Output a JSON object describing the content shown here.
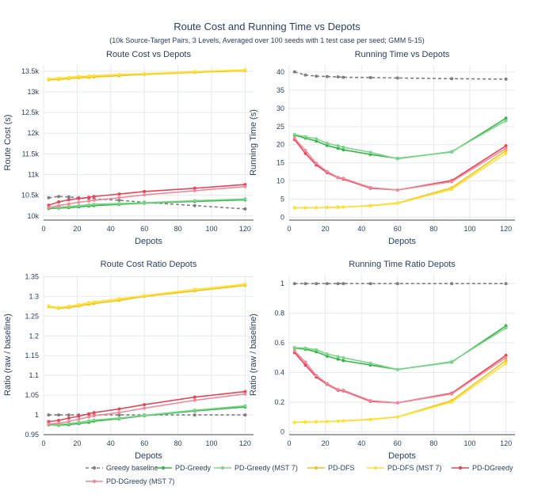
{
  "title": "Route Cost and Running Time vs Depots",
  "subtitle": "(10k Source-Target Pairs, 3 Levels, Averaged over 100 seeds with 1 test case per seed; GMM 5-15)",
  "series_styles": [
    {
      "name": "Greedy baseline",
      "color": "#7f7f7f",
      "dash": true
    },
    {
      "name": "PD-Greedy",
      "color": "#3cb44b",
      "dash": false
    },
    {
      "name": "PD-Greedy (MST 7)",
      "color": "#7ad68a",
      "dash": false
    },
    {
      "name": "PD-DFS",
      "color": "#f0c419",
      "dash": false
    },
    {
      "name": "PD-DFS (MST 7)",
      "color": "#ffe135",
      "dash": false
    },
    {
      "name": "PD-DGreedy",
      "color": "#e6455a",
      "dash": false
    },
    {
      "name": "PD-DGreedy (MST 7)",
      "color": "#f08a9a",
      "dash": false
    }
  ],
  "chart_data": [
    {
      "type": "line",
      "title": "Route Cost vs Depots",
      "xlabel": "Depots",
      "ylabel": "Route Cost (s)",
      "xlim": [
        0,
        125
      ],
      "ylim": [
        9900,
        13650
      ],
      "xticks": [
        0,
        20,
        40,
        60,
        80,
        100,
        120
      ],
      "xticklabels": [
        "0",
        "20",
        "40",
        "60",
        "80",
        "100",
        "120"
      ],
      "yticks": [
        10000,
        10500,
        11000,
        11500,
        12000,
        12500,
        13000,
        13500
      ],
      "yticklabels": [
        "10k",
        "10.5k",
        "11k",
        "11.5k",
        "12k",
        "12.5k",
        "13k",
        "13.5k"
      ],
      "x": [
        3,
        9,
        15,
        21,
        27,
        30,
        45,
        60,
        90,
        120
      ],
      "series": [
        {
          "name": "Greedy baseline",
          "values": [
            10440,
            10470,
            10460,
            10440,
            10420,
            10410,
            10380,
            10330,
            10250,
            10170
          ]
        },
        {
          "name": "PD-Greedy",
          "values": [
            10180,
            10190,
            10200,
            10220,
            10240,
            10250,
            10280,
            10310,
            10350,
            10390
          ]
        },
        {
          "name": "PD-Greedy (MST 7)",
          "values": [
            10200,
            10210,
            10230,
            10250,
            10270,
            10280,
            10300,
            10320,
            10370,
            10410
          ]
        },
        {
          "name": "PD-DFS",
          "values": [
            13290,
            13300,
            13320,
            13340,
            13350,
            13360,
            13390,
            13420,
            13470,
            13510
          ]
        },
        {
          "name": "PD-DFS (MST 7)",
          "values": [
            13310,
            13330,
            13350,
            13370,
            13380,
            13390,
            13420,
            13440,
            13490,
            13530
          ]
        },
        {
          "name": "PD-DGreedy",
          "values": [
            10260,
            10340,
            10390,
            10420,
            10450,
            10470,
            10530,
            10590,
            10670,
            10760
          ]
        },
        {
          "name": "PD-DGreedy (MST 7)",
          "values": [
            10200,
            10250,
            10290,
            10330,
            10360,
            10380,
            10440,
            10510,
            10610,
            10710
          ]
        }
      ]
    },
    {
      "type": "line",
      "title": "Running Time vs Depots",
      "xlabel": "Depots",
      "ylabel": "Running Time (s)",
      "xlim": [
        0,
        125
      ],
      "ylim": [
        -0.8,
        42
      ],
      "xticks": [
        0,
        20,
        40,
        60,
        80,
        100,
        120
      ],
      "xticklabels": [
        "0",
        "20",
        "40",
        "60",
        "80",
        "100",
        "120"
      ],
      "yticks": [
        0,
        5,
        10,
        15,
        20,
        25,
        30,
        35,
        40
      ],
      "yticklabels": [
        "0",
        "5",
        "10",
        "15",
        "20",
        "25",
        "30",
        "35",
        "40"
      ],
      "x": [
        3,
        9,
        15,
        21,
        27,
        30,
        45,
        60,
        90,
        120
      ],
      "series": [
        {
          "name": "Greedy baseline",
          "values": [
            40.1,
            39.2,
            38.9,
            38.8,
            38.7,
            38.6,
            38.5,
            38.4,
            38.2,
            38.1
          ]
        },
        {
          "name": "PD-Greedy",
          "values": [
            22.6,
            21.8,
            21.0,
            19.8,
            19.0,
            18.6,
            17.3,
            16.2,
            18.0,
            27.3
          ]
        },
        {
          "name": "PD-Greedy (MST 7)",
          "values": [
            22.8,
            22.2,
            21.6,
            20.4,
            19.7,
            19.3,
            17.9,
            16.1,
            18.1,
            26.6
          ]
        },
        {
          "name": "PD-DFS",
          "values": [
            2.6,
            2.6,
            2.6,
            2.7,
            2.8,
            2.8,
            3.2,
            3.9,
            8.1,
            18.4
          ]
        },
        {
          "name": "PD-DFS (MST 7)",
          "values": [
            2.6,
            2.6,
            2.6,
            2.7,
            2.7,
            2.8,
            3.1,
            3.8,
            7.7,
            17.6
          ]
        },
        {
          "name": "PD-DGreedy",
          "values": [
            21.4,
            17.6,
            14.4,
            12.3,
            10.9,
            10.5,
            8.0,
            7.5,
            10.1,
            19.7
          ]
        },
        {
          "name": "PD-DGreedy (MST 7)",
          "values": [
            21.8,
            18.4,
            14.9,
            12.6,
            11.0,
            10.7,
            8.2,
            7.5,
            9.8,
            19.0
          ]
        }
      ]
    },
    {
      "type": "line",
      "title": "Route Cost Ratio Depots",
      "xlabel": "Depots",
      "ylabel": "Ratio (raw / baseline)",
      "xlim": [
        0,
        125
      ],
      "ylim": [
        0.95,
        1.355
      ],
      "xticks": [
        0,
        20,
        40,
        60,
        80,
        100,
        120
      ],
      "xticklabels": [
        "0",
        "20",
        "40",
        "60",
        "80",
        "100",
        "120"
      ],
      "yticks": [
        0.95,
        1.0,
        1.05,
        1.1,
        1.15,
        1.2,
        1.25,
        1.3,
        1.35
      ],
      "yticklabels": [
        "0.95",
        "1",
        "1.05",
        "1.1",
        "1.15",
        "1.2",
        "1.25",
        "1.3",
        "1.35"
      ],
      "x": [
        3,
        9,
        15,
        21,
        27,
        30,
        45,
        60,
        90,
        120
      ],
      "series": [
        {
          "name": "Greedy baseline",
          "values": [
            1.0,
            1.0,
            1.0,
            1.0,
            1.0,
            1.0,
            1.0,
            1.0,
            1.0,
            1.0
          ]
        },
        {
          "name": "PD-Greedy",
          "values": [
            0.975,
            0.974,
            0.975,
            0.978,
            0.981,
            0.984,
            0.99,
            0.998,
            1.01,
            1.02
          ]
        },
        {
          "name": "PD-Greedy (MST 7)",
          "values": [
            0.977,
            0.976,
            0.978,
            0.981,
            0.985,
            0.987,
            0.992,
            0.999,
            1.012,
            1.023
          ]
        },
        {
          "name": "PD-DFS",
          "values": [
            1.274,
            1.27,
            1.272,
            1.276,
            1.28,
            1.282,
            1.29,
            1.3,
            1.314,
            1.328
          ]
        },
        {
          "name": "PD-DFS (MST 7)",
          "values": [
            1.276,
            1.272,
            1.275,
            1.279,
            1.284,
            1.286,
            1.294,
            1.302,
            1.318,
            1.331
          ]
        },
        {
          "name": "PD-DGreedy",
          "values": [
            0.983,
            0.986,
            0.992,
            0.997,
            1.003,
            1.006,
            1.015,
            1.026,
            1.045,
            1.059
          ]
        },
        {
          "name": "PD-DGreedy (MST 7)",
          "values": [
            0.977,
            0.979,
            0.983,
            0.989,
            0.995,
            0.998,
            1.006,
            1.017,
            1.037,
            1.053
          ]
        }
      ]
    },
    {
      "type": "line",
      "title": "Running Time Ratio Depots",
      "xlabel": "Depots",
      "ylabel": "Ratio (raw / baseline)",
      "xlim": [
        0,
        125
      ],
      "ylim": [
        -0.02,
        1.06
      ],
      "xticks": [
        0,
        20,
        40,
        60,
        80,
        100,
        120
      ],
      "xticklabels": [
        "0",
        "20",
        "40",
        "60",
        "80",
        "100",
        "120"
      ],
      "yticks": [
        0,
        0.2,
        0.4,
        0.6,
        0.8,
        1.0
      ],
      "yticklabels": [
        "0",
        "0.2",
        "0.4",
        "0.6",
        "0.8",
        "1"
      ],
      "x": [
        3,
        9,
        15,
        21,
        27,
        30,
        45,
        60,
        90,
        120
      ],
      "series": [
        {
          "name": "Greedy baseline",
          "values": [
            1.0,
            1.0,
            1.0,
            1.0,
            1.0,
            1.0,
            1.0,
            1.0,
            1.0,
            1.0
          ]
        },
        {
          "name": "PD-Greedy",
          "values": [
            0.565,
            0.557,
            0.54,
            0.51,
            0.49,
            0.48,
            0.45,
            0.42,
            0.47,
            0.715
          ]
        },
        {
          "name": "PD-Greedy (MST 7)",
          "values": [
            0.568,
            0.565,
            0.553,
            0.525,
            0.507,
            0.5,
            0.462,
            0.42,
            0.473,
            0.7
          ]
        },
        {
          "name": "PD-DFS",
          "values": [
            0.063,
            0.065,
            0.067,
            0.069,
            0.071,
            0.073,
            0.083,
            0.1,
            0.21,
            0.48
          ]
        },
        {
          "name": "PD-DFS (MST 7)",
          "values": [
            0.064,
            0.065,
            0.067,
            0.069,
            0.071,
            0.072,
            0.082,
            0.099,
            0.2,
            0.46
          ]
        },
        {
          "name": "PD-DGreedy",
          "values": [
            0.535,
            0.45,
            0.37,
            0.32,
            0.28,
            0.275,
            0.205,
            0.195,
            0.26,
            0.515
          ]
        },
        {
          "name": "PD-DGreedy (MST 7)",
          "values": [
            0.545,
            0.47,
            0.38,
            0.325,
            0.285,
            0.28,
            0.21,
            0.195,
            0.255,
            0.5
          ]
        }
      ]
    }
  ]
}
